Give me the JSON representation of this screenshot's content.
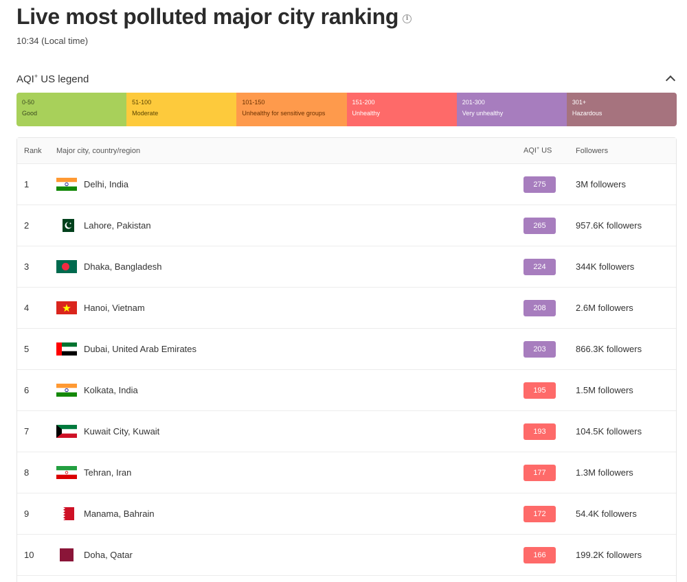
{
  "header": {
    "title": "Live most polluted major city ranking",
    "time": "10:34 (Local time)"
  },
  "legend": {
    "title_main": "AQI",
    "title_sup": "+",
    "title_rest": " US legend",
    "segments": [
      {
        "range": "0-50",
        "label": "Good",
        "color": "#a8d05a",
        "text_color": "#3b4a1f"
      },
      {
        "range": "51-100",
        "label": "Moderate",
        "color": "#fdca3c",
        "text_color": "#5b4400"
      },
      {
        "range": "101-150",
        "label": "Unhealthy for sensitive groups",
        "color": "#fe9a4c",
        "text_color": "#6a3000"
      },
      {
        "range": "151-200",
        "label": "Unhealthy",
        "color": "#fe6a69",
        "text_color": "#ffffff"
      },
      {
        "range": "201-300",
        "label": "Very unhealthy",
        "color": "#a77dbe",
        "text_color": "#ffffff"
      },
      {
        "range": "301+",
        "label": "Hazardous",
        "color": "#a6737e",
        "text_color": "#ffffff"
      }
    ]
  },
  "table": {
    "headers": {
      "rank": "Rank",
      "city": "Major city, country/region",
      "aqi_main": "AQI",
      "aqi_sup": "+",
      "aqi_rest": " US",
      "followers": "Followers"
    },
    "rows": [
      {
        "rank": "1",
        "city": "Delhi, India",
        "flag": "india-flag",
        "aqi": "275",
        "aqi_color": "#a77dbe",
        "followers": "3M followers"
      },
      {
        "rank": "2",
        "city": "Lahore, Pakistan",
        "flag": "pakistan-flag",
        "aqi": "265",
        "aqi_color": "#a77dbe",
        "followers": "957.6K followers"
      },
      {
        "rank": "3",
        "city": "Dhaka, Bangladesh",
        "flag": "bangladesh-flag",
        "aqi": "224",
        "aqi_color": "#a77dbe",
        "followers": "344K followers"
      },
      {
        "rank": "4",
        "city": "Hanoi, Vietnam",
        "flag": "vietnam-flag",
        "aqi": "208",
        "aqi_color": "#a77dbe",
        "followers": "2.6M followers"
      },
      {
        "rank": "5",
        "city": "Dubai, United Arab Emirates",
        "flag": "uae-flag",
        "aqi": "203",
        "aqi_color": "#a77dbe",
        "followers": "866.3K followers"
      },
      {
        "rank": "6",
        "city": "Kolkata, India",
        "flag": "india-flag",
        "aqi": "195",
        "aqi_color": "#fe6a69",
        "followers": "1.5M followers"
      },
      {
        "rank": "7",
        "city": "Kuwait City, Kuwait",
        "flag": "kuwait-flag",
        "aqi": "193",
        "aqi_color": "#fe6a69",
        "followers": "104.5K followers"
      },
      {
        "rank": "8",
        "city": "Tehran, Iran",
        "flag": "iran-flag",
        "aqi": "177",
        "aqi_color": "#fe6a69",
        "followers": "1.3M followers"
      },
      {
        "rank": "9",
        "city": "Manama, Bahrain",
        "flag": "bahrain-flag",
        "aqi": "172",
        "aqi_color": "#fe6a69",
        "followers": "54.4K followers"
      },
      {
        "rank": "10",
        "city": "Doha, Qatar",
        "flag": "qatar-flag",
        "aqi": "166",
        "aqi_color": "#fe6a69",
        "followers": "199.2K followers"
      }
    ]
  }
}
